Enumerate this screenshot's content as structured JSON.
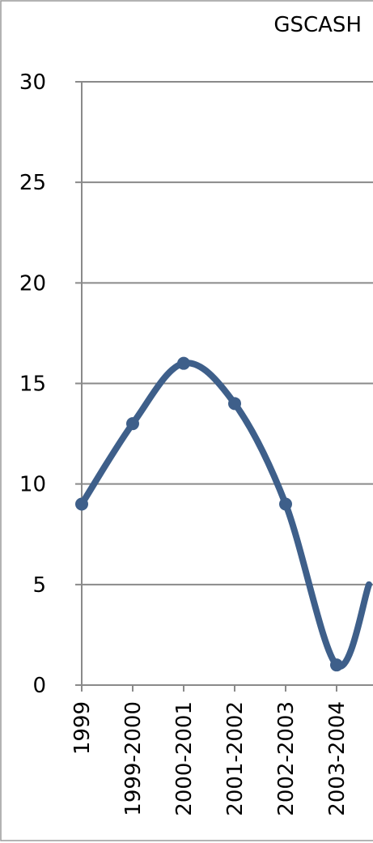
{
  "chart_data": {
    "type": "line",
    "title": "GSCASH",
    "categories": [
      "1999",
      "1999-2000",
      "2000-2001",
      "2001-2002",
      "2002-2003",
      "2003-2004"
    ],
    "series": [
      {
        "values": [
          9,
          13,
          16,
          14,
          9,
          1
        ]
      }
    ],
    "y_ticks": [
      "0",
      "5",
      "10",
      "15",
      "20",
      "25",
      "30"
    ],
    "ylim": [
      0,
      30
    ],
    "grid": true,
    "smooth": true,
    "colors": {
      "series": "#3e5f8a",
      "grid": "#8a8a8a"
    }
  }
}
